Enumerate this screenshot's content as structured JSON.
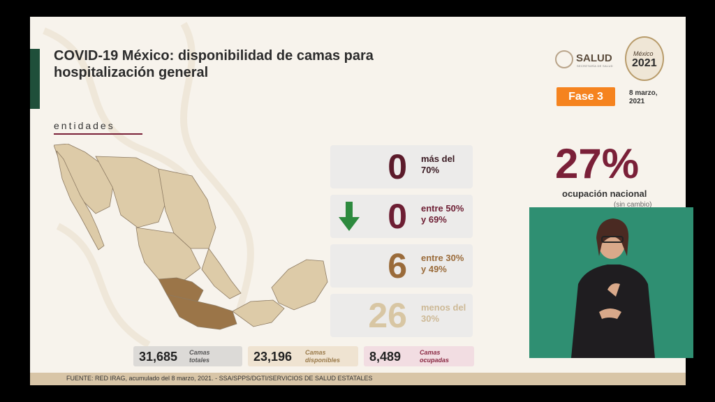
{
  "header": {
    "title": "COVID-19 México: disponibilidad de camas para hospitalización general",
    "section": "entidades"
  },
  "logos": {
    "salud": "SALUD",
    "salud_sub": "SECRETARÍA DE SALUD",
    "year_script": "México",
    "year": "2021"
  },
  "status": {
    "phase": "Fase 3",
    "date": "8 marzo, 2021"
  },
  "cards": [
    {
      "value": "0",
      "label": "más del 70%",
      "color": "#5b1a2a",
      "label_color": "#3a1a22"
    },
    {
      "value": "0",
      "label": "entre 50% y 69%",
      "color": "#6d1e33",
      "label_color": "#6d1e33",
      "arrow": "down-arrow-icon"
    },
    {
      "value": "6",
      "label": "entre 30% y 49%",
      "color": "#9a6b3a",
      "label_color": "#9a6b3a"
    },
    {
      "value": "26",
      "label": "menos del 30%",
      "color": "#d8c6a3",
      "label_color": "#cdb996"
    }
  ],
  "totals": [
    {
      "value": "31,685",
      "label": "Camas totales",
      "bg": "#dcdad7",
      "label_color": "#555"
    },
    {
      "value": "23,196",
      "label": "Camas disponibles",
      "bg": "#efe3d1",
      "label_color": "#9a7a4a"
    },
    {
      "value": "8,489",
      "label": "Camas ocupadas",
      "bg": "#f2dde2",
      "label_color": "#8a2a44"
    }
  ],
  "national": {
    "value": "27%",
    "label": "ocupación nacional",
    "sub": "(sin cambio)"
  },
  "footer": "FUENTE: RED IRAG, acumulado del 8 marzo, 2021.  -  SSA/SPPS/DGTI/SERVICIOS DE SALUD ESTATALES",
  "colors": {
    "title_bar": "#1f4f3a",
    "map_low": "#ddcba8",
    "map_mid": "#9b7548",
    "fase": "#f5831f",
    "accent": "#7a2038",
    "video_bg": "#2f8f72"
  }
}
